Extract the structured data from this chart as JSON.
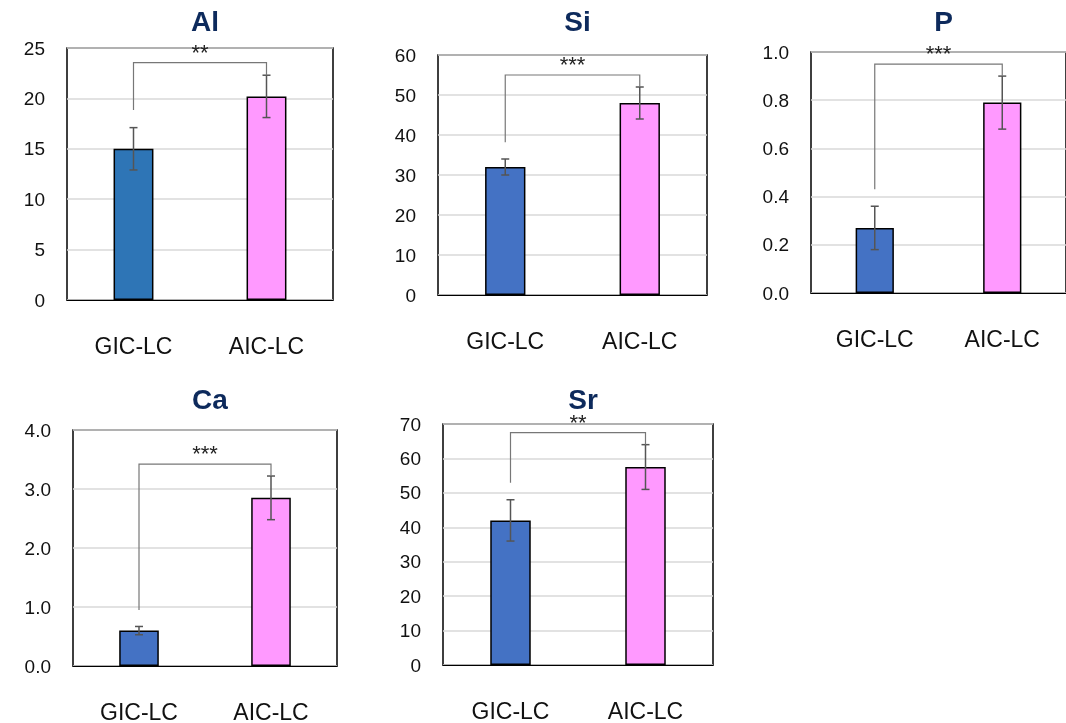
{
  "chart_data": [
    {
      "type": "bar",
      "title": "Al",
      "categories": [
        "GIC-LC",
        "AIC-LC"
      ],
      "values": [
        15,
        20.2
      ],
      "errors": [
        2.1,
        2.1
      ],
      "colors": [
        "#2e75b6",
        "#ff99ff"
      ],
      "ylim": [
        0,
        25
      ],
      "yticks": [
        0,
        5,
        10,
        15,
        20,
        25
      ],
      "grid": "y",
      "annotations": [
        "**"
      ]
    },
    {
      "type": "bar",
      "title": "Si",
      "categories": [
        "GIC-LC",
        "AIC-LC"
      ],
      "values": [
        32,
        48
      ],
      "errors": [
        2,
        4
      ],
      "colors": [
        "#4472c4",
        "#ff99ff"
      ],
      "ylim": [
        0,
        60
      ],
      "yticks": [
        0,
        10,
        20,
        30,
        40,
        50,
        60
      ],
      "grid": "y",
      "annotations": [
        "***"
      ]
    },
    {
      "type": "bar",
      "title": "P",
      "categories": [
        "GIC-LC",
        "AIC-LC"
      ],
      "values": [
        0.27,
        0.79
      ],
      "errors": [
        0.09,
        0.11
      ],
      "colors": [
        "#4472c4",
        "#ff99ff"
      ],
      "ylim": [
        0,
        1
      ],
      "yticks": [
        {
          "value": 0,
          "label": "0.0"
        },
        {
          "value": 0.2,
          "label": "0.2"
        },
        {
          "value": 0.4,
          "label": "0.4"
        },
        {
          "value": 0.6,
          "label": "0.6"
        },
        {
          "value": 0.8,
          "label": "0.8"
        },
        {
          "value": 1,
          "label": "1.0"
        }
      ],
      "grid": "y",
      "annotations": [
        "***"
      ]
    },
    {
      "type": "bar",
      "title": "Ca",
      "categories": [
        "GIC-LC",
        "AIC-LC"
      ],
      "values": [
        0.6,
        2.85
      ],
      "errors": [
        0.07,
        0.37
      ],
      "colors": [
        "#4472c4",
        "#ff99ff"
      ],
      "ylim": [
        0,
        4
      ],
      "yticks": [
        {
          "value": 0,
          "label": "0.0"
        },
        {
          "value": 1,
          "label": "1.0"
        },
        {
          "value": 2,
          "label": "2.0"
        },
        {
          "value": 3,
          "label": "3.0"
        },
        {
          "value": 4,
          "label": "4.0"
        }
      ],
      "grid": "y",
      "annotations": [
        "***"
      ]
    },
    {
      "type": "bar",
      "title": "Sr",
      "categories": [
        "GIC-LC",
        "AIC-LC"
      ],
      "values": [
        42,
        57.5
      ],
      "errors": [
        6,
        6.5
      ],
      "colors": [
        "#4472c4",
        "#ff99ff"
      ],
      "ylim": [
        0,
        70
      ],
      "yticks": [
        0,
        10,
        20,
        30,
        40,
        50,
        60,
        70
      ],
      "grid": "y",
      "annotations": [
        "**"
      ]
    }
  ]
}
